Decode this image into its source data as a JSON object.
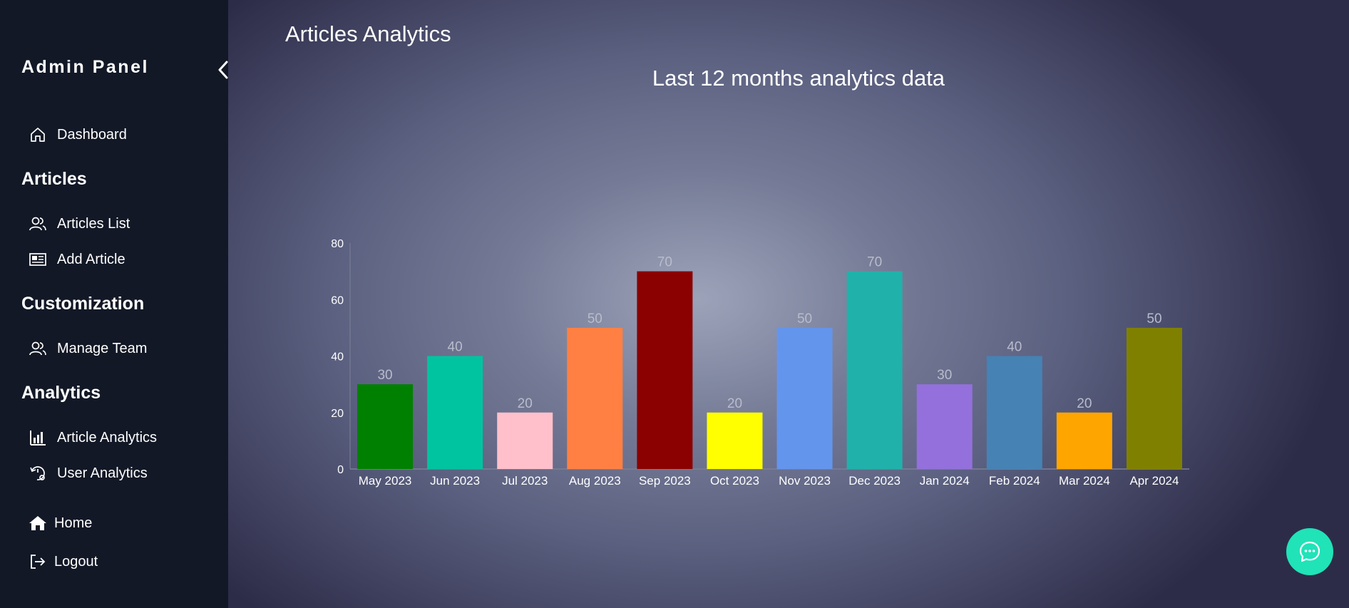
{
  "sidebar": {
    "brand": "Admin Panel",
    "dashboard": "Dashboard",
    "sections": {
      "articles": "Articles",
      "customization": "Customization",
      "analytics": "Analytics"
    },
    "articles_list": "Articles List",
    "add_article": "Add Article",
    "manage_team": "Manage Team",
    "article_analytics": "Article Analytics",
    "user_analytics": "User Analytics",
    "home": "Home",
    "logout": "Logout"
  },
  "main": {
    "page_title": "Articles Analytics"
  },
  "chart_data": {
    "type": "bar",
    "title": "Last 12 months analytics data",
    "categories": [
      "May 2023",
      "Jun 2023",
      "Jul 2023",
      "Aug 2023",
      "Sep 2023",
      "Oct 2023",
      "Nov 2023",
      "Dec 2023",
      "Jan 2024",
      "Feb 2024",
      "Mar 2024",
      "Apr 2024"
    ],
    "values": [
      30,
      40,
      20,
      50,
      70,
      20,
      50,
      70,
      30,
      40,
      20,
      50
    ],
    "colors": [
      "#008000",
      "#00c49f",
      "#ffc0cb",
      "#ff8042",
      "#8b0000",
      "#ffff00",
      "#6495ed",
      "#20b2aa",
      "#9370db",
      "#4682b4",
      "#ffa500",
      "#808000"
    ],
    "yticks": [
      0,
      20,
      40,
      60,
      80
    ],
    "ylim": [
      0,
      80
    ],
    "xlabel": "",
    "ylabel": "",
    "grid": false,
    "data_labels": true
  }
}
